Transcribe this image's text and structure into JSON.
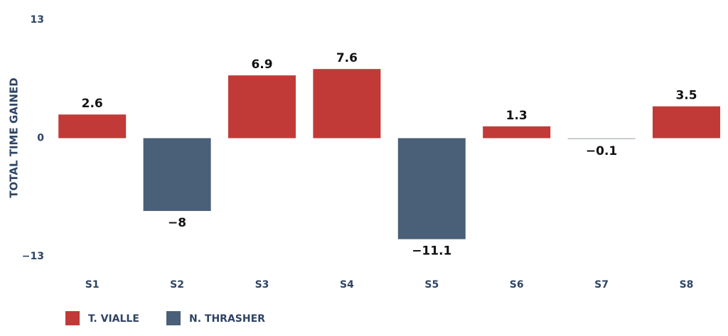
{
  "chart_data": {
    "type": "bar",
    "title": "",
    "xlabel": "",
    "ylabel": "TOTAL TIME GAINED",
    "ylim": [
      -13,
      13
    ],
    "yticks": [
      {
        "value": 13,
        "label": "13"
      },
      {
        "value": 0,
        "label": "0"
      },
      {
        "value": -13,
        "label": "−13"
      }
    ],
    "grid": false,
    "legend_position": "bottom-left",
    "categories": [
      "S1",
      "S2",
      "S3",
      "S4",
      "S5",
      "S6",
      "S7",
      "S8"
    ],
    "series": [
      {
        "name": "T. VIALLE",
        "color": "#c23a38"
      },
      {
        "name": "N. THRASHER",
        "color": "#4a5f78"
      }
    ],
    "values": [
      2.6,
      -8,
      6.9,
      7.6,
      -11.1,
      1.3,
      -0.1,
      3.5
    ],
    "value_labels": [
      "2.6",
      "−8",
      "6.9",
      "7.6",
      "−11.1",
      "1.3",
      "−0.1",
      "3.5"
    ],
    "bar_series": [
      0,
      1,
      0,
      0,
      1,
      0,
      1,
      0
    ],
    "bar_colors": [
      "#c23a38",
      "#4a5f78",
      "#c23a38",
      "#c23a38",
      "#4a5f78",
      "#c23a38",
      "#b8bcc4",
      "#c23a38"
    ],
    "text_color": "#2e4463"
  }
}
